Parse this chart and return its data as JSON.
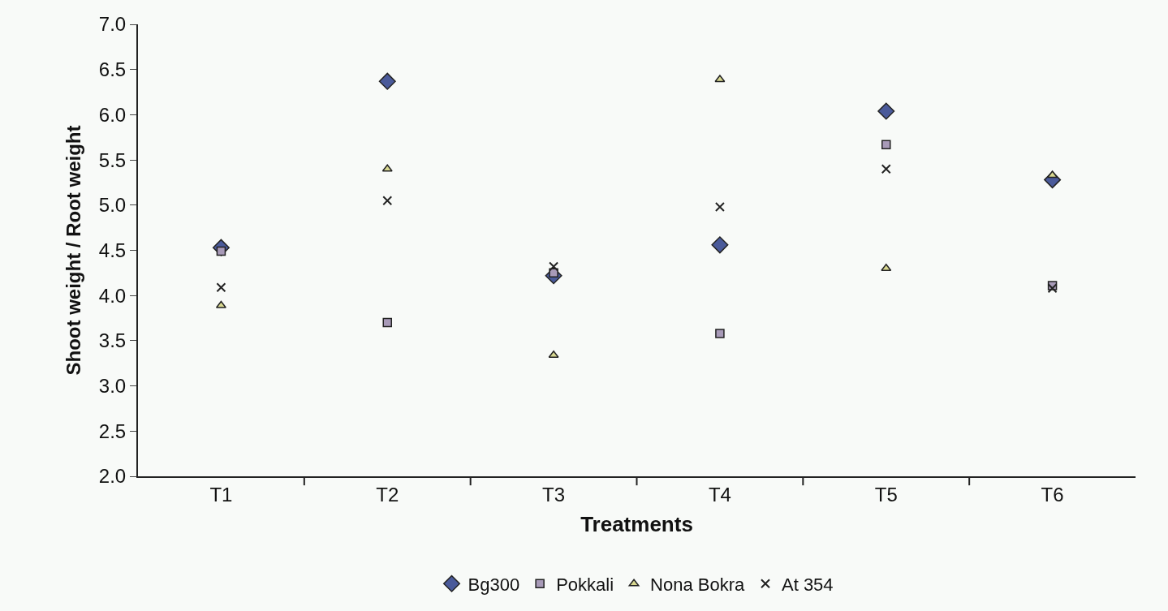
{
  "chart_data": {
    "type": "scatter",
    "xlabel": "Treatments",
    "ylabel": "Shoot weight / Root weight",
    "categories": [
      "T1",
      "T2",
      "T3",
      "T4",
      "T5",
      "T6"
    ],
    "series": [
      {
        "name": "Bg300",
        "color": "#4a5a9a",
        "marker": "diamond",
        "values": [
          4.53,
          6.37,
          4.22,
          4.56,
          6.04,
          5.28
        ]
      },
      {
        "name": "Pokkali",
        "color": "#a89ab8",
        "marker": "square",
        "values": [
          4.49,
          3.7,
          4.25,
          3.58,
          5.67,
          4.11
        ]
      },
      {
        "name": "Nona Bokra",
        "color": "#d8d890",
        "marker": "triangle",
        "values": [
          3.89,
          5.4,
          3.34,
          6.39,
          4.3,
          5.33
        ]
      },
      {
        "name": "At 354",
        "color": "#222222",
        "marker": "cross",
        "values": [
          4.09,
          5.05,
          4.32,
          4.98,
          5.4,
          4.08
        ]
      }
    ],
    "ylim": [
      2.0,
      7.0
    ],
    "yticks": [
      {
        "value": 2.0,
        "label": "2.0"
      },
      {
        "value": 2.5,
        "label": "2.5"
      },
      {
        "value": 3.0,
        "label": "3.0"
      },
      {
        "value": 3.5,
        "label": "3.5"
      },
      {
        "value": 4.0,
        "label": "4.0"
      },
      {
        "value": 4.5,
        "label": "4.5"
      },
      {
        "value": 5.0,
        "label": "5.0"
      },
      {
        "value": 5.5,
        "label": "5.5"
      },
      {
        "value": 6.0,
        "label": "6.0"
      },
      {
        "value": 6.5,
        "label": "6.5"
      },
      {
        "value": 7.0,
        "label": "7.0"
      }
    ],
    "grid": false,
    "legend": "bottom"
  }
}
